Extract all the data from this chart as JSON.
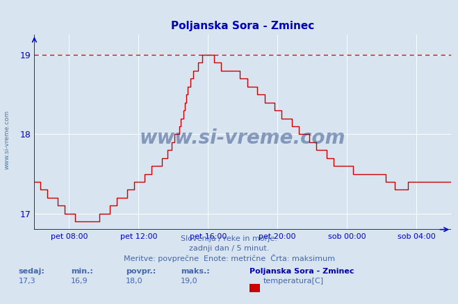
{
  "title": "Poljanska Sora - Zminec",
  "title_color": "#0000bb",
  "bg_color": "#d8e4f0",
  "plot_bg_color": "#d8e4f0",
  "line_color": "#cc0000",
  "dashed_line_color": "#cc0000",
  "axis_color": "#0000cc",
  "grid_color": "#ffffff",
  "text_color": "#4466aa",
  "ymin": 16.8,
  "ymax": 19.25,
  "yticks": [
    17,
    18,
    19
  ],
  "max_line_y": 19.0,
  "subtitle1": "Slovenija / reke in morje.",
  "subtitle2": "zadnji dan / 5 minut.",
  "subtitle3": "Meritve: povprečne  Enote: metrične  Črta: maksimum",
  "footer_label1": "sedaj:",
  "footer_val1": "17,3",
  "footer_label2": "min.:",
  "footer_val2": "16,9",
  "footer_label3": "povpr.:",
  "footer_val3": "18,0",
  "footer_label4": "maks.:",
  "footer_val4": "19,0",
  "footer_station": "Poljanska Sora - Zminec",
  "footer_series": "temperatura[C]",
  "watermark": "www.si-vreme.com",
  "xticklabels": [
    "pet 08:00",
    "pet 12:00",
    "pet 16:00",
    "pet 20:00",
    "sob 00:00",
    "sob 04:00"
  ],
  "xtick_positions": [
    24,
    72,
    120,
    168,
    216,
    264
  ],
  "n_points": 289
}
